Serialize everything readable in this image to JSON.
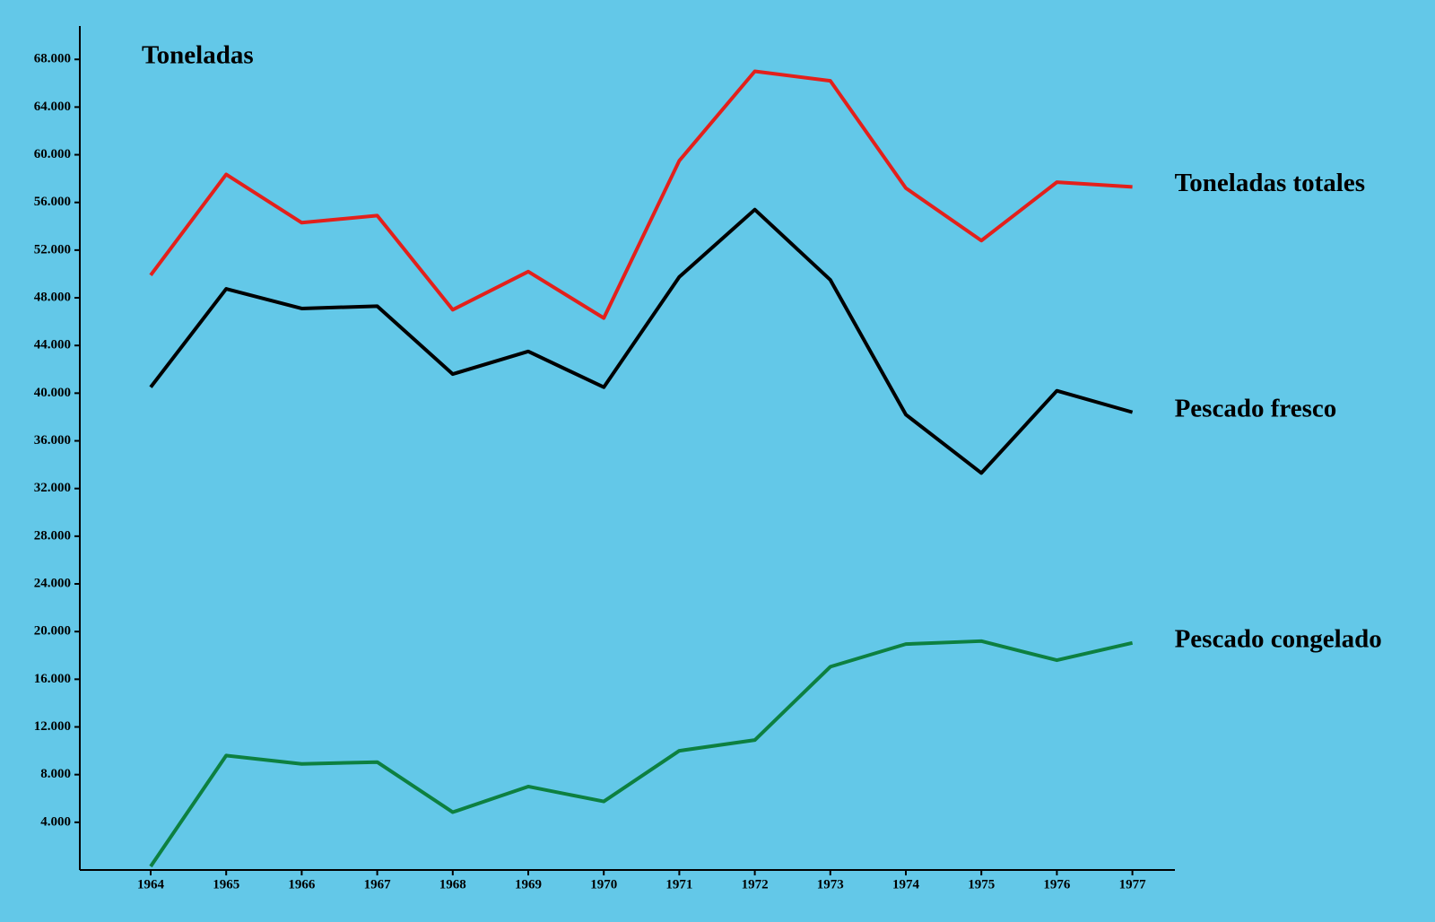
{
  "chart_data": {
    "type": "line",
    "ylabel": "Toneladas",
    "categories": [
      "1964",
      "1965",
      "1966",
      "1967",
      "1968",
      "1969",
      "1970",
      "1971",
      "1972",
      "1973",
      "1974",
      "1975",
      "1976",
      "1977"
    ],
    "series": [
      {
        "name": "Toneladas totales",
        "color": "#e3201b",
        "values": [
          49900,
          58350,
          54300,
          54900,
          47000,
          50200,
          46300,
          59500,
          67000,
          66200,
          57200,
          52800,
          57700,
          57300
        ]
      },
      {
        "name": "Pescado fresco",
        "color": "#000000",
        "values": [
          40500,
          48750,
          47100,
          47300,
          41600,
          43500,
          40500,
          49750,
          55400,
          49500,
          38200,
          33300,
          40200,
          38400
        ]
      },
      {
        "name": "Pescado congelado",
        "color": "#0d8040",
        "values": [
          300,
          9600,
          8900,
          9050,
          4850,
          7000,
          5750,
          10000,
          10900,
          17050,
          18950,
          19200,
          17600,
          19050
        ]
      }
    ],
    "ylim": [
      0,
      70800
    ],
    "yticks": [
      {
        "value": 4000,
        "label": "4.000"
      },
      {
        "value": 8000,
        "label": "8.000"
      },
      {
        "value": 12000,
        "label": "12.000"
      },
      {
        "value": 16000,
        "label": "16.000"
      },
      {
        "value": 20000,
        "label": "20.000"
      },
      {
        "value": 24000,
        "label": "24.000"
      },
      {
        "value": 28000,
        "label": "28.000"
      },
      {
        "value": 32000,
        "label": "32.000"
      },
      {
        "value": 36000,
        "label": "36.000"
      },
      {
        "value": 40000,
        "label": "40.000"
      },
      {
        "value": 44000,
        "label": "44.000"
      },
      {
        "value": 48000,
        "label": "48.000"
      },
      {
        "value": 52000,
        "label": "52.000"
      },
      {
        "value": 56000,
        "label": "56.000"
      },
      {
        "value": 60000,
        "label": "60.000"
      },
      {
        "value": 64000,
        "label": "64.000"
      },
      {
        "value": 68000,
        "label": "68.000"
      }
    ],
    "grid": false
  }
}
